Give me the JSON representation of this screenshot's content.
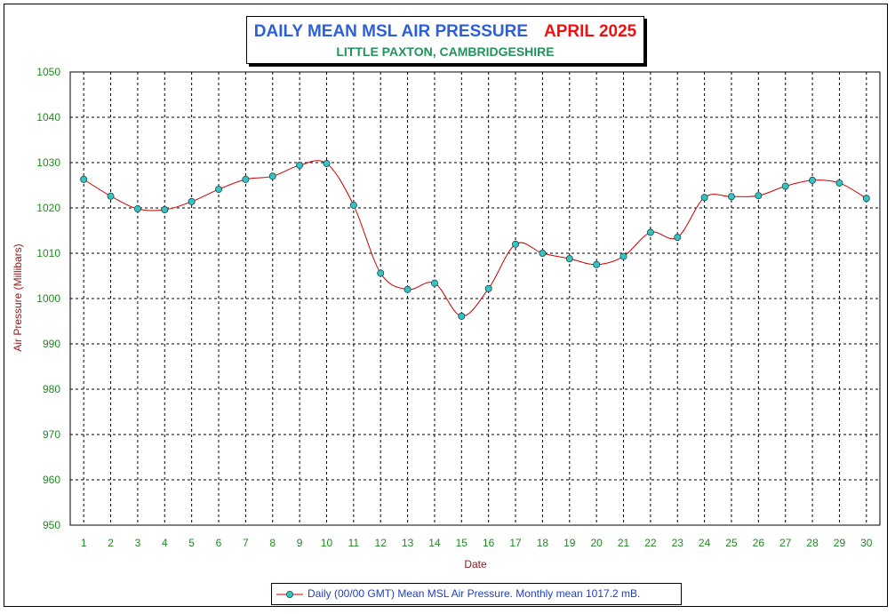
{
  "colors": {
    "title": "#2d5fd6",
    "period": "#ee1111",
    "subtitle": "#21935a",
    "tick_labels": "#1e8a1e",
    "axis_titles": "#8b1a1a",
    "line": "#cc0000",
    "marker_fill": "#35c4c4",
    "legend_text": "#1f3fbf",
    "grid": "#000000"
  },
  "chart_data": {
    "type": "line",
    "title": "DAILY MEAN MSL AIR PRESSURE",
    "period": "APRIL 2025",
    "subtitle": "LITTLE PAXTON, CAMBRIDGESHIRE",
    "xlabel": "Date",
    "ylabel": "Air Pressure (Millibars)",
    "ylim": [
      950,
      1050
    ],
    "yticks": [
      950,
      960,
      970,
      980,
      990,
      1000,
      1010,
      1020,
      1030,
      1040,
      1050
    ],
    "grid": true,
    "x": [
      1,
      2,
      3,
      4,
      5,
      6,
      7,
      8,
      9,
      10,
      11,
      12,
      13,
      14,
      15,
      16,
      17,
      18,
      19,
      20,
      21,
      22,
      23,
      24,
      25,
      26,
      27,
      28,
      29,
      30
    ],
    "series": [
      {
        "name": "Daily (00/00 GMT) Mean MSL Air Pressure. Monthly mean 1017.2 mB.",
        "values": [
          1026.3,
          1022.6,
          1019.8,
          1019.6,
          1021.4,
          1024.1,
          1026.3,
          1027.0,
          1029.4,
          1029.8,
          1020.6,
          1005.6,
          1002.0,
          1003.4,
          996.1,
          1002.2,
          1012.0,
          1010.0,
          1008.8,
          1007.5,
          1009.3,
          1014.6,
          1013.5,
          1022.3,
          1022.5,
          1022.7,
          1024.8,
          1026.1,
          1025.5,
          1022.1
        ]
      }
    ],
    "legend_position": "bottom-center"
  }
}
